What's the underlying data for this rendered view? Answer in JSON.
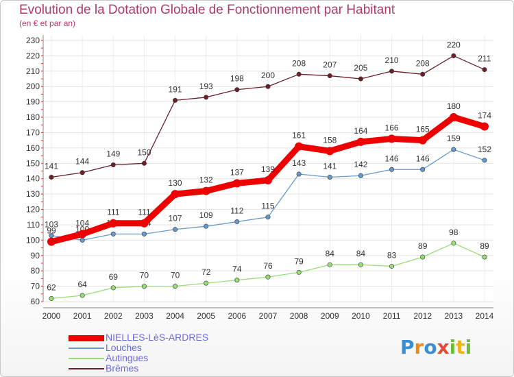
{
  "title": "Evolution de la Dotation Globale de Fonctionnement par Habitant",
  "subtitle": "(en € et par an)",
  "chart_data": {
    "type": "line",
    "title": "Evolution de la Dotation Globale de Fonctionnement par Habitant",
    "subtitle": "(en € et par an)",
    "x": [
      "2000",
      "2001",
      "2002",
      "2003",
      "2004",
      "2005",
      "2006",
      "2007",
      "2008",
      "2009",
      "2010",
      "2011",
      "2012",
      "2013",
      "2014"
    ],
    "ylim": [
      60,
      230
    ],
    "yticks": [
      60,
      70,
      80,
      90,
      100,
      110,
      120,
      130,
      140,
      150,
      160,
      170,
      180,
      190,
      200,
      210,
      220,
      230
    ],
    "grid": true,
    "legend_position": "bottom-left",
    "series": [
      {
        "name": "Brêmes",
        "color": "#6b1f2a",
        "values": [
          141,
          144,
          149,
          150,
          191,
          193,
          198,
          200,
          208,
          207,
          205,
          210,
          208,
          220,
          211
        ]
      },
      {
        "name": "Louches",
        "color": "#6699cc",
        "values": [
          103,
          100,
          104,
          104,
          107,
          109,
          112,
          115,
          143,
          141,
          142,
          146,
          146,
          159,
          152
        ]
      },
      {
        "name": "Autingues",
        "color": "#99dd77",
        "values": [
          62,
          64,
          69,
          70,
          70,
          72,
          74,
          76,
          79,
          84,
          84,
          83,
          89,
          98,
          89
        ]
      },
      {
        "name": "NIELLES-LèS-ARDRES",
        "color": "#ee0000",
        "values": [
          99,
          104,
          111,
          111,
          130,
          132,
          137,
          139,
          161,
          158,
          164,
          166,
          165,
          180,
          174
        ]
      }
    ]
  },
  "legend": [
    {
      "label": "NIELLES-LèS-ARDRES",
      "color": "#ee0000"
    },
    {
      "label": "Louches",
      "color": "#6699cc"
    },
    {
      "label": "Autingues",
      "color": "#99dd77"
    },
    {
      "label": "Brêmes",
      "color": "#6b1f2a"
    }
  ],
  "logo": {
    "letters": [
      "P",
      "r",
      "o",
      "x",
      "i",
      "t",
      "i"
    ],
    "colors": [
      "#3a8fd6",
      "#f08a1a",
      "#3a8fd6",
      "#e84a3a",
      "#6bbf3a",
      "#f0b41a",
      "#6bbf3a"
    ]
  }
}
